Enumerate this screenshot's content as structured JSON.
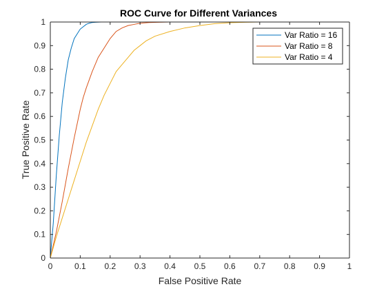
{
  "chart_data": {
    "type": "line",
    "title": "ROC Curve for Different Variances",
    "xlabel": "False Positive Rate",
    "ylabel": "True Positive Rate",
    "xlim": [
      0,
      1
    ],
    "ylim": [
      0,
      1
    ],
    "xticks": [
      "0",
      "0.1",
      "0.2",
      "0.3",
      "0.4",
      "0.5",
      "0.6",
      "0.7",
      "0.8",
      "0.9",
      "1"
    ],
    "yticks": [
      "0",
      "0.1",
      "0.2",
      "0.3",
      "0.4",
      "0.5",
      "0.6",
      "0.7",
      "0.8",
      "0.9",
      "1"
    ],
    "grid": false,
    "legend_position": "top-right",
    "series": [
      {
        "name": "Var Ratio = 16",
        "color": "#0072BD",
        "x": [
          0,
          0.01,
          0.02,
          0.03,
          0.04,
          0.05,
          0.06,
          0.07,
          0.08,
          0.09,
          0.1,
          0.11,
          0.12,
          0.13,
          0.14,
          0.15,
          0.17,
          0.2,
          0.3,
          0.5,
          1.0
        ],
        "y": [
          0,
          0.15,
          0.35,
          0.52,
          0.66,
          0.76,
          0.84,
          0.89,
          0.93,
          0.95,
          0.97,
          0.98,
          0.99,
          0.995,
          0.998,
          0.999,
          1.0,
          1.0,
          1.0,
          1.0,
          1.0
        ]
      },
      {
        "name": "Var Ratio = 8",
        "color": "#D95319",
        "x": [
          0,
          0.02,
          0.04,
          0.06,
          0.08,
          0.1,
          0.11,
          0.12,
          0.14,
          0.16,
          0.18,
          0.2,
          0.22,
          0.24,
          0.26,
          0.28,
          0.3,
          0.33,
          0.36,
          0.4,
          0.45,
          0.6,
          1.0
        ],
        "y": [
          0,
          0.11,
          0.24,
          0.38,
          0.51,
          0.63,
          0.68,
          0.72,
          0.79,
          0.85,
          0.89,
          0.93,
          0.96,
          0.975,
          0.985,
          0.99,
          0.995,
          0.998,
          0.999,
          1.0,
          1.0,
          1.0,
          1.0
        ]
      },
      {
        "name": "Var Ratio = 4",
        "color": "#EDB120",
        "x": [
          0,
          0.02,
          0.04,
          0.06,
          0.08,
          0.1,
          0.12,
          0.14,
          0.16,
          0.18,
          0.2,
          0.22,
          0.24,
          0.26,
          0.28,
          0.3,
          0.32,
          0.35,
          0.4,
          0.45,
          0.5,
          0.55,
          0.6,
          0.65,
          0.7,
          1.0
        ],
        "y": [
          0,
          0.09,
          0.17,
          0.25,
          0.33,
          0.41,
          0.49,
          0.56,
          0.63,
          0.69,
          0.74,
          0.79,
          0.82,
          0.85,
          0.88,
          0.9,
          0.92,
          0.94,
          0.96,
          0.975,
          0.985,
          0.993,
          0.997,
          0.999,
          1.0,
          1.0
        ]
      }
    ]
  }
}
